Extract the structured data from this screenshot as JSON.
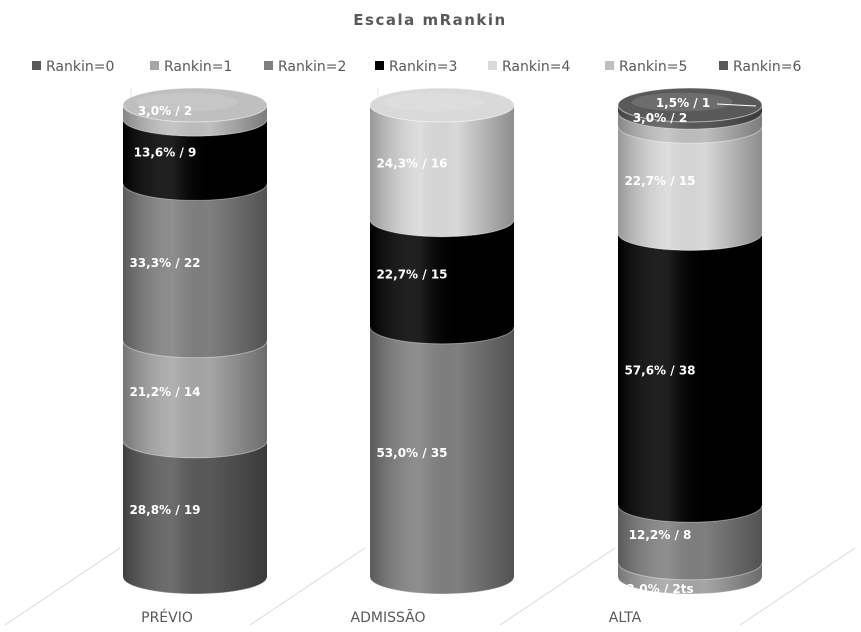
{
  "chart_data": {
    "type": "bar",
    "title": "Escala mRankin",
    "xlabel": "",
    "ylabel": "",
    "ylim": [
      0,
      100
    ],
    "legend_position": "top",
    "grid": false,
    "categories": [
      "PRÉVIO",
      "ADMISSÃO",
      "ALTA"
    ],
    "series": [
      {
        "name": "Rankin=0",
        "color": "#595959",
        "values": [
          28.8,
          0,
          0
        ],
        "labels": [
          "28,8% / 19",
          "",
          ""
        ]
      },
      {
        "name": "Rankin=1",
        "color": "#a6a6a6",
        "values": [
          21.2,
          0,
          3.0
        ],
        "labels": [
          "21,2% / 14",
          "",
          "3,0% / 2ts"
        ]
      },
      {
        "name": "Rankin=2",
        "color": "#7f7f7f",
        "values": [
          33.3,
          53.0,
          12.2
        ],
        "labels": [
          "33,3% / 22",
          "53,0% / 35",
          "12,2% / 8"
        ]
      },
      {
        "name": "Rankin=3",
        "color": "#000000",
        "values": [
          13.6,
          22.7,
          57.6
        ],
        "labels": [
          "13,6% / 9",
          "22,7% / 15",
          "57,6% / 38"
        ]
      },
      {
        "name": "Rankin=4",
        "color": "#d9d9d9",
        "values": [
          0,
          24.3,
          22.7
        ],
        "labels": [
          "",
          "24,3% / 16",
          "22,7% / 15"
        ]
      },
      {
        "name": "Rankin=5",
        "color": "#bfbfbf",
        "values": [
          3.0,
          0,
          3.0
        ],
        "labels": [
          "3,0% / 2",
          "",
          "3,0% / 2"
        ]
      },
      {
        "name": "Rankin=6",
        "color": "#595959",
        "values": [
          0,
          0,
          1.5
        ],
        "labels": [
          "",
          "",
          "1,5% / 1"
        ]
      }
    ]
  }
}
